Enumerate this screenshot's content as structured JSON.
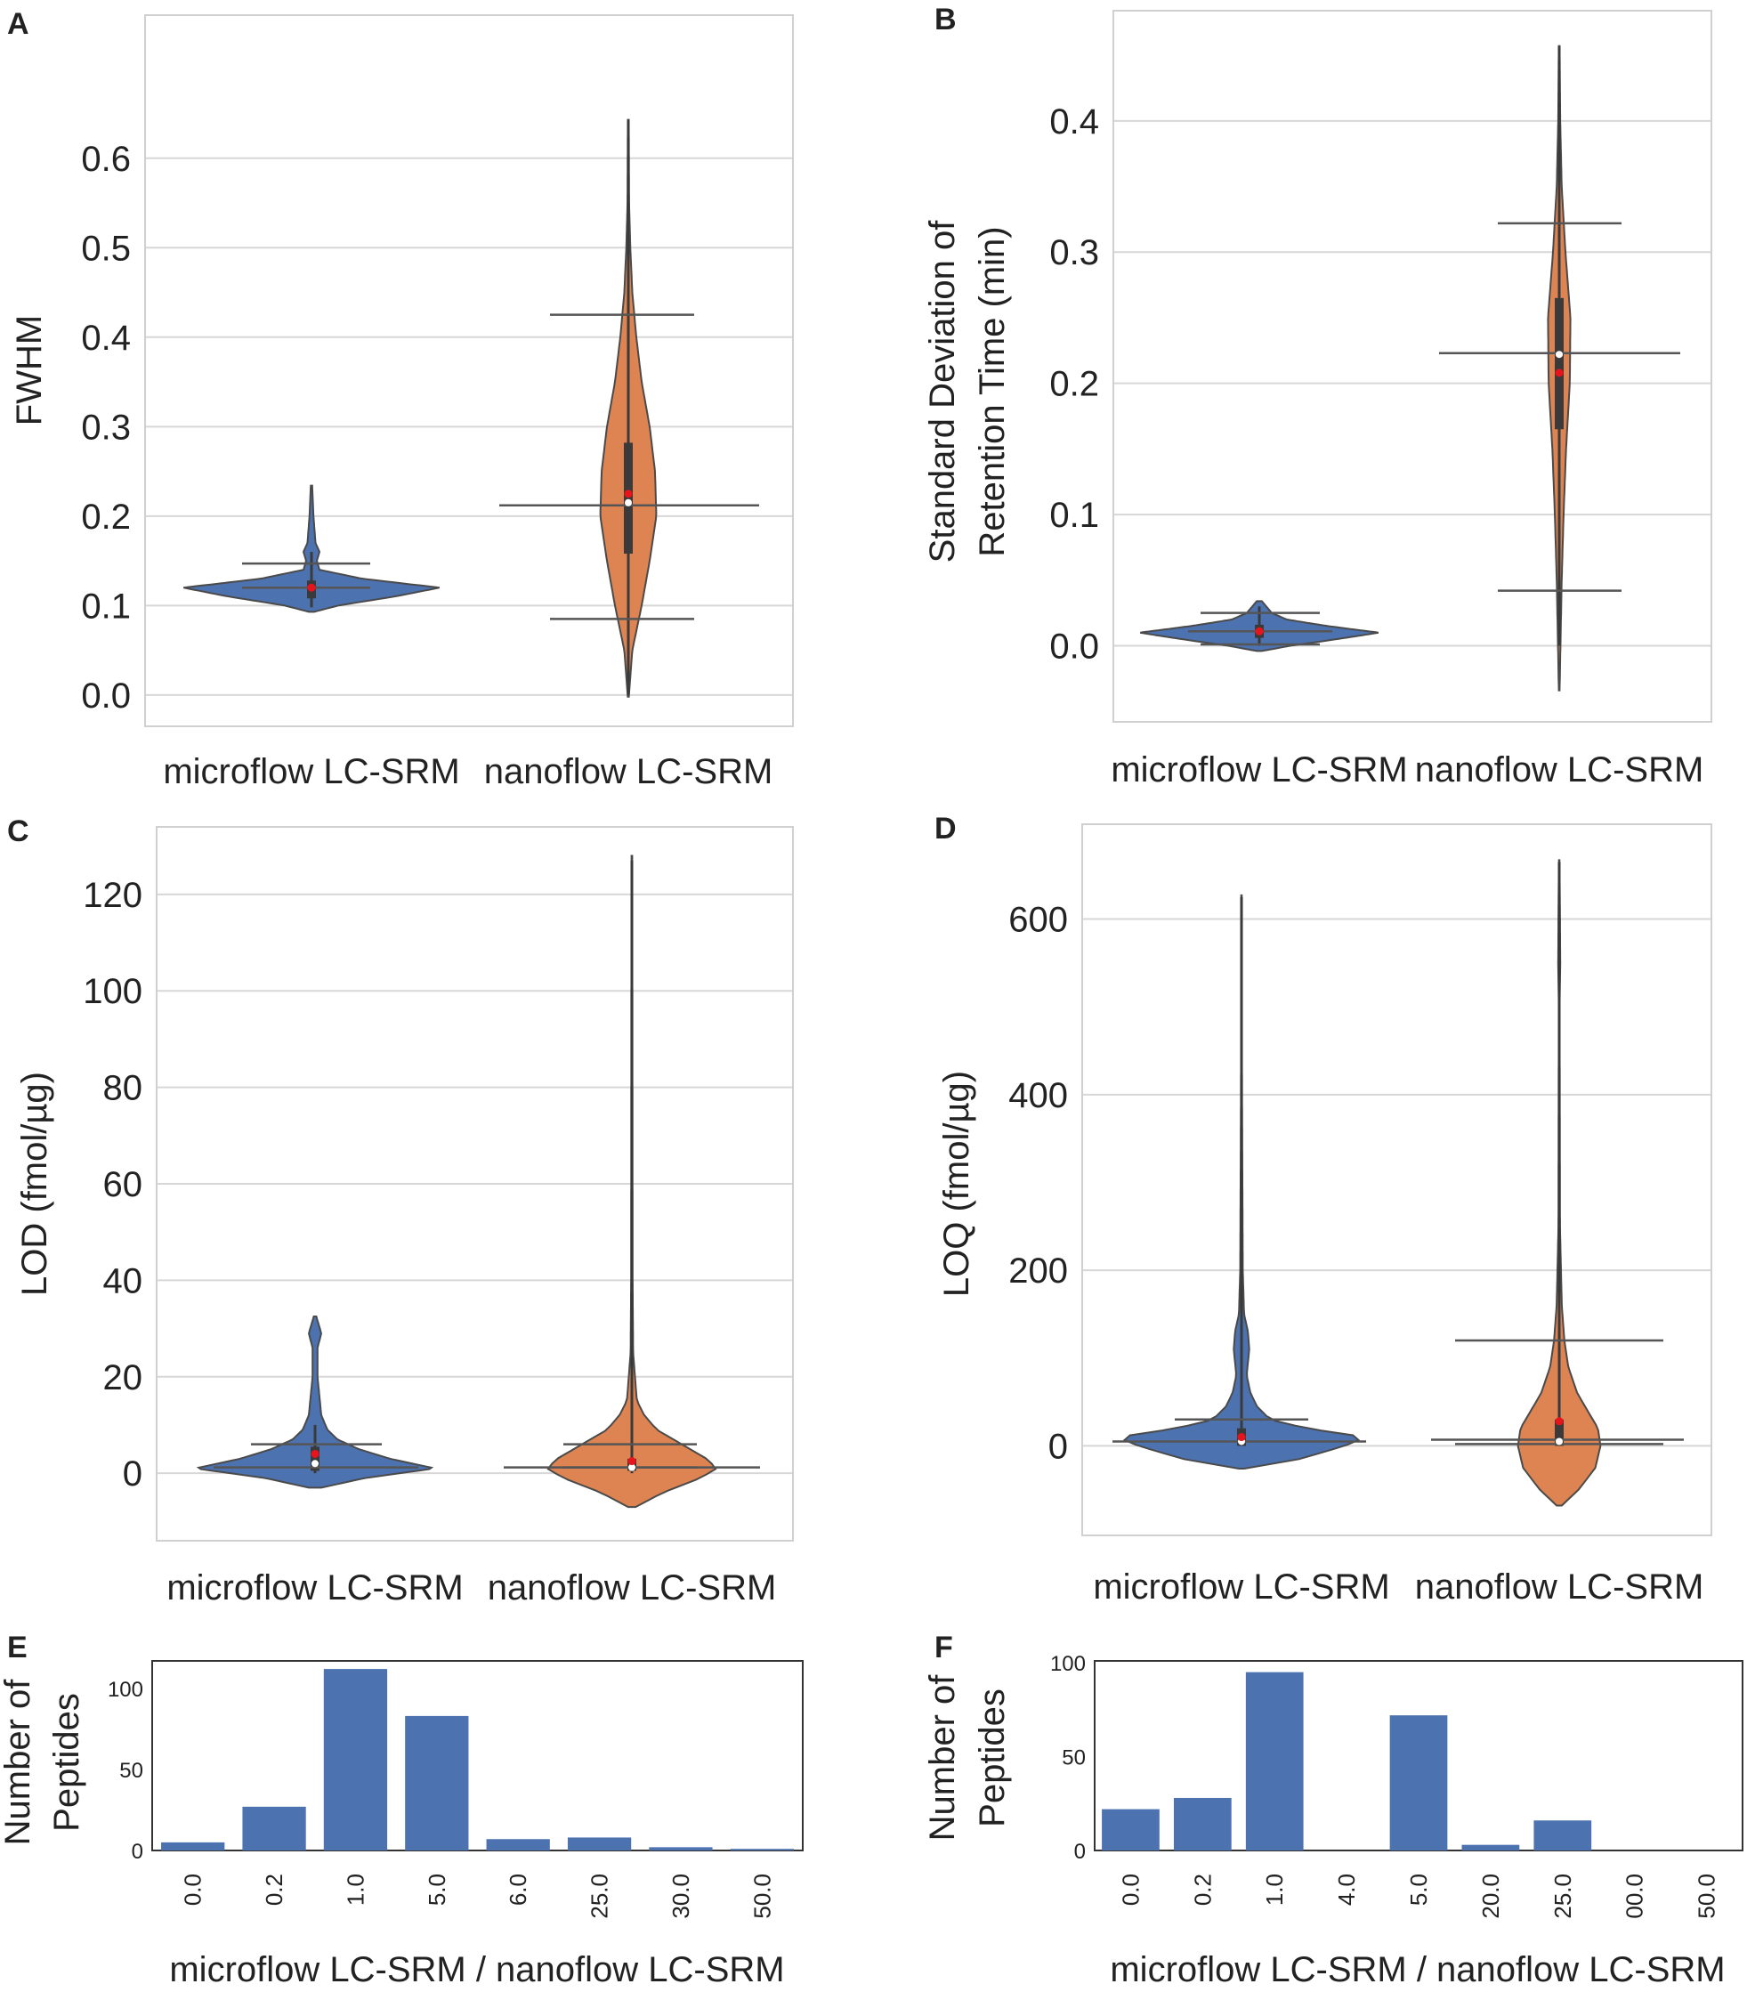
{
  "chart_data": [
    {
      "id": "A",
      "type": "violin",
      "panel_letter": "A",
      "ylabel": "FWHM",
      "ylim": [
        -0.035,
        0.76
      ],
      "yticks": [
        "0.0",
        "0.1",
        "0.2",
        "0.3",
        "0.4",
        "0.5",
        "0.6"
      ],
      "categories": [
        "microflow LC-SRM",
        "nanoflow LC-SRM"
      ],
      "series": [
        {
          "name": "microflow LC-SRM",
          "color": "#4c72b0",
          "profile": [
            [
              0.093,
              0.02
            ],
            [
              0.1,
              0.2
            ],
            [
              0.11,
              0.62
            ],
            [
              0.12,
              0.96
            ],
            [
              0.13,
              0.38
            ],
            [
              0.14,
              0.06
            ],
            [
              0.15,
              0.04
            ],
            [
              0.16,
              0.06
            ],
            [
              0.17,
              0.03
            ],
            [
              0.19,
              0.02
            ],
            [
              0.2,
              0.015
            ],
            [
              0.234,
              0.005
            ]
          ],
          "box": [
            0.108,
            0.128
          ],
          "whisker": [
            0.098,
            0.16
          ],
          "median": 0.12,
          "mean": 0.12,
          "lines": [
            0.147,
            0.12
          ]
        },
        {
          "name": "nanoflow LC-SRM",
          "color": "#dd8452",
          "profile": [
            [
              -0.002,
              0.004
            ],
            [
              0.05,
              0.03
            ],
            [
              0.1,
              0.1
            ],
            [
              0.15,
              0.16
            ],
            [
              0.2,
              0.21
            ],
            [
              0.25,
              0.2
            ],
            [
              0.3,
              0.16
            ],
            [
              0.35,
              0.1
            ],
            [
              0.4,
              0.06
            ],
            [
              0.45,
              0.03
            ],
            [
              0.5,
              0.015
            ],
            [
              0.55,
              0.006
            ],
            [
              0.643,
              0.003
            ]
          ],
          "box": [
            0.158,
            0.282
          ],
          "whisker": [
            0.0,
            0.643
          ],
          "median": 0.215,
          "mean": 0.225,
          "lines": [
            0.425,
            0.212,
            0.085
          ]
        }
      ]
    },
    {
      "id": "B",
      "type": "violin",
      "panel_letter": "B",
      "ylabel": [
        "Standard Deviation of",
        "Retention Time (min)"
      ],
      "ylim": [
        -0.058,
        0.484
      ],
      "yticks": [
        "0.0",
        "0.1",
        "0.2",
        "0.3",
        "0.4"
      ],
      "categories": [
        "microflow LC-SRM",
        "nanoflow LC-SRM"
      ],
      "series": [
        {
          "name": "microflow LC-SRM",
          "color": "#4c72b0",
          "profile": [
            [
              -0.004,
              0.02
            ],
            [
              0.0,
              0.25
            ],
            [
              0.005,
              0.62
            ],
            [
              0.01,
              0.96
            ],
            [
              0.015,
              0.55
            ],
            [
              0.02,
              0.22
            ],
            [
              0.025,
              0.1
            ],
            [
              0.034,
              0.02
            ]
          ],
          "box": [
            0.006,
            0.016
          ],
          "whisker": [
            0.0,
            0.03
          ],
          "median": 0.011,
          "mean": 0.011,
          "lines": [
            0.025,
            0.011,
            0.001
          ]
        },
        {
          "name": "nanoflow LC-SRM",
          "color": "#dd8452",
          "profile": [
            [
              -0.034,
              0.003
            ],
            [
              0.0,
              0.01
            ],
            [
              0.05,
              0.02
            ],
            [
              0.1,
              0.035
            ],
            [
              0.15,
              0.055
            ],
            [
              0.2,
              0.085
            ],
            [
              0.25,
              0.09
            ],
            [
              0.3,
              0.05
            ],
            [
              0.35,
              0.02
            ],
            [
              0.4,
              0.008
            ],
            [
              0.457,
              0.003
            ]
          ],
          "box": [
            0.165,
            0.265
          ],
          "whisker": [
            0.0,
            0.457
          ],
          "median": 0.222,
          "mean": 0.208,
          "lines": [
            0.322,
            0.223,
            0.042
          ]
        }
      ]
    },
    {
      "id": "C",
      "type": "violin",
      "panel_letter": "C",
      "ylabel": "LOD (fmol/µg)",
      "ylim": [
        -14,
        134
      ],
      "yticks": [
        "0",
        "20",
        "40",
        "60",
        "80",
        "100",
        "120"
      ],
      "categories": [
        "microflow LC-SRM",
        "nanoflow LC-SRM"
      ],
      "series": [
        {
          "name": "microflow LC-SRM",
          "color": "#4c72b0",
          "profile": [
            [
              -3,
              0.05
            ],
            [
              -1,
              0.4
            ],
            [
              1,
              0.96
            ],
            [
              3,
              0.6
            ],
            [
              5,
              0.35
            ],
            [
              7,
              0.18
            ],
            [
              9,
              0.1
            ],
            [
              12,
              0.05
            ],
            [
              20,
              0.02
            ],
            [
              26,
              0.02
            ],
            [
              29,
              0.05
            ],
            [
              32.5,
              0.01
            ]
          ],
          "box": [
            0.5,
            5.5
          ],
          "whisker": [
            0,
            10
          ],
          "median": 2,
          "mean": 4,
          "lines": [
            6,
            1.2
          ]
        },
        {
          "name": "nanoflow LC-SRM",
          "color": "#dd8452",
          "profile": [
            [
              -7,
              0.03
            ],
            [
              -4,
              0.25
            ],
            [
              -1,
              0.55
            ],
            [
              1,
              0.68
            ],
            [
              3,
              0.6
            ],
            [
              6,
              0.4
            ],
            [
              9,
              0.2
            ],
            [
              12,
              0.1
            ],
            [
              15,
              0.04
            ],
            [
              25,
              0.01
            ],
            [
              40,
              0.006
            ],
            [
              128,
              0.003
            ]
          ],
          "box": [
            0.5,
            3
          ],
          "whisker": [
            0,
            127
          ],
          "median": 1.2,
          "mean": 2.5,
          "lines": [
            6,
            1.2,
            1.2
          ]
        }
      ]
    },
    {
      "id": "D",
      "type": "violin",
      "panel_letter": "D",
      "ylabel": "LOQ (fmol/µg)",
      "ylim": [
        -102,
        708
      ],
      "yticks": [
        "0",
        "200",
        "400",
        "600"
      ],
      "categories": [
        "microflow LC-SRM",
        "nanoflow LC-SRM"
      ],
      "series": [
        {
          "name": "microflow LC-SRM",
          "color": "#4c72b0",
          "profile": [
            [
              -26,
              0.02
            ],
            [
              -15,
              0.45
            ],
            [
              0,
              0.8
            ],
            [
              10,
              0.96
            ],
            [
              20,
              0.5
            ],
            [
              30,
              0.22
            ],
            [
              45,
              0.12
            ],
            [
              60,
              0.07
            ],
            [
              80,
              0.04
            ],
            [
              110,
              0.06
            ],
            [
              130,
              0.05
            ],
            [
              150,
              0.02
            ],
            [
              200,
              0.01
            ],
            [
              400,
              0.004
            ],
            [
              627,
              0.002
            ]
          ],
          "box": [
            0,
            20
          ],
          "whisker": [
            0,
            625
          ],
          "median": 5,
          "mean": 10,
          "lines": [
            30,
            5
          ]
        },
        {
          "name": "nanoflow LC-SRM",
          "color": "#dd8452",
          "profile": [
            [
              -68,
              0.02
            ],
            [
              -50,
              0.15
            ],
            [
              -25,
              0.28
            ],
            [
              0,
              0.32
            ],
            [
              20,
              0.3
            ],
            [
              40,
              0.22
            ],
            [
              60,
              0.14
            ],
            [
              90,
              0.07
            ],
            [
              120,
              0.04
            ],
            [
              160,
              0.02
            ],
            [
              250,
              0.006
            ],
            [
              500,
              0.003
            ],
            [
              550,
              0.008
            ],
            [
              600,
              0.006
            ],
            [
              667,
              0.002
            ]
          ],
          "box": [
            0,
            30
          ],
          "whisker": [
            0,
            665
          ],
          "median": 5,
          "mean": 28,
          "lines": [
            120,
            7,
            2
          ]
        }
      ]
    },
    {
      "id": "E",
      "type": "bar",
      "panel_letter": "E",
      "ylabel": [
        "Number of",
        "Peptides"
      ],
      "xlabel": "microflow LC-SRM / nanoflow LC-SRM",
      "ylim": [
        0,
        117
      ],
      "yticks": [
        "0",
        "50",
        "100"
      ],
      "color": "#4c72b0",
      "categories": [
        "0.0",
        "0.2",
        "1.0",
        "5.0",
        "6.0",
        "25.0",
        "30.0",
        "50.0"
      ],
      "values": [
        5,
        27,
        112,
        83,
        7,
        8,
        2,
        1
      ]
    },
    {
      "id": "F",
      "type": "bar",
      "panel_letter": "F",
      "ylabel": [
        "Number of",
        "Peptides"
      ],
      "xlabel": "microflow LC-SRM / nanoflow LC-SRM",
      "ylim": [
        0,
        101
      ],
      "yticks": [
        "0",
        "50",
        "100"
      ],
      "color": "#4c72b0",
      "categories": [
        "0.0",
        "0.2",
        "1.0",
        "4.0",
        "5.0",
        "20.0",
        "25.0",
        "00.0",
        "50.0"
      ],
      "values": [
        22,
        28,
        95,
        0,
        72,
        3,
        16,
        0,
        0
      ]
    }
  ]
}
